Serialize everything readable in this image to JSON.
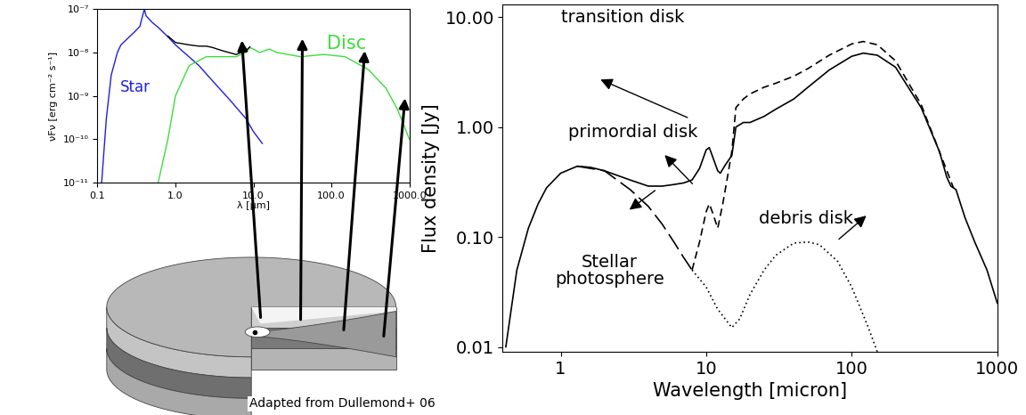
{
  "chart_data": [
    {
      "type": "line",
      "log": true,
      "xlabel": "λ [μm]",
      "ylabel": "νFν [erg cm⁻² s⁻¹]",
      "xlim": [
        0.1,
        1000.0
      ],
      "ylim": [
        1e-11,
        1e-07
      ],
      "xticks": [
        0.1,
        1.0,
        10.0,
        100.0,
        1000.0
      ],
      "yticks": [
        {
          "value": 1e-11,
          "label": "10⁻¹¹"
        },
        {
          "value": 1e-10,
          "label": "10⁻¹⁰"
        },
        {
          "value": 1e-09,
          "label": "10⁻⁹"
        },
        {
          "value": 1e-08,
          "label": "10⁻⁸"
        },
        {
          "value": 1e-07,
          "label": "10⁻⁷"
        }
      ],
      "series": [
        {
          "name": "Star",
          "color": "#1f1fe0",
          "line_style": "solid",
          "x": [
            0.11,
            0.115,
            0.13,
            0.15,
            0.18,
            0.2,
            0.25,
            0.3,
            0.35,
            0.37,
            0.4,
            0.42,
            0.5,
            0.6,
            0.8,
            1.0,
            2.0,
            3.0,
            5.0,
            8.0,
            10.0,
            13.0
          ],
          "values": [
            5e-12,
            1.5e-11,
            3e-10,
            3e-09,
            1e-08,
            1.5e-08,
            2.2e-08,
            3e-08,
            4e-08,
            6e-08,
            1e-07,
            7e-08,
            5e-08,
            3.8e-08,
            2.3e-08,
            1.5e-08,
            5e-09,
            2.2e-09,
            8e-10,
            3e-10,
            1.5e-10,
            8e-11
          ]
        },
        {
          "name": "Disc",
          "color": "#3fdc3f",
          "line_style": "solid",
          "x": [
            0.6,
            0.8,
            1.0,
            1.5,
            2.5,
            4.0,
            6.0,
            8.0,
            9.0,
            10.0,
            12.0,
            14.0,
            16.0,
            20.0,
            40.0,
            80.0,
            150.0,
            300.0,
            500.0,
            700.0,
            1000.0
          ],
          "values": [
            1e-11,
            1e-10,
            1e-09,
            5e-09,
            8e-09,
            8e-09,
            8e-09,
            1e-08,
            1.3e-08,
            1.2e-08,
            1e-08,
            1.1e-08,
            1.2e-08,
            1e-08,
            8e-09,
            9e-09,
            8e-09,
            4e-09,
            1.5e-09,
            5e-10,
            1e-10
          ]
        },
        {
          "color": "#000000",
          "line_style": "solid",
          "x": [
            0.8,
            1.0,
            1.5,
            2.0,
            2.5,
            3.0,
            4.0,
            6.0,
            8.0,
            9.0
          ],
          "values": [
            2.4e-08,
            1.7e-08,
            1.5e-08,
            1.4e-08,
            1.4e-08,
            1.3e-08,
            1.1e-08,
            9e-09,
            1.1e-08,
            1.35e-08
          ]
        }
      ]
    },
    {
      "type": "line",
      "log": true,
      "xlabel": "Wavelength [micron]",
      "ylabel": "Flux density [Jy]",
      "xlim": [
        0.4,
        1000
      ],
      "ylim": [
        0.009,
        13
      ],
      "xticks": [
        1,
        10,
        100,
        1000
      ],
      "yticks": [
        0.01,
        {
          "value": 0.1,
          "label": "0.10"
        },
        {
          "value": 1,
          "label": "1.00"
        },
        {
          "value": 10,
          "label": "10.00"
        }
      ],
      "series": [
        {
          "name": "primordial disk",
          "color": "#000000",
          "line_style": "solid",
          "x": [
            0.42,
            0.5,
            0.6,
            0.7,
            0.8,
            1.0,
            1.3,
            1.6,
            2.0,
            3.0,
            4.0,
            5.0,
            6.0,
            7.0,
            8.0,
            9.0,
            10.0,
            10.5,
            11.0,
            12.0,
            12.5,
            13.5,
            15.0,
            16.0,
            18.0,
            20.0,
            25.0,
            30.0,
            40.0,
            50.0,
            70.0,
            100.0,
            120.0,
            150.0,
            200.0,
            300.0,
            400.0,
            450.0,
            480.0,
            520.0,
            600.0,
            700.0,
            850.0,
            1000.0
          ],
          "values": [
            0.01,
            0.05,
            0.12,
            0.2,
            0.28,
            0.38,
            0.44,
            0.43,
            0.4,
            0.33,
            0.29,
            0.29,
            0.3,
            0.31,
            0.33,
            0.42,
            0.62,
            0.65,
            0.55,
            0.4,
            0.38,
            0.45,
            0.55,
            1.0,
            1.1,
            1.1,
            1.25,
            1.45,
            1.8,
            2.3,
            3.3,
            4.4,
            4.7,
            4.5,
            3.5,
            1.5,
            0.6,
            0.35,
            0.29,
            0.27,
            0.15,
            0.09,
            0.05,
            0.025
          ]
        },
        {
          "name": "Stellar\nphotosphere",
          "color": "#000000",
          "line_style": "long_dash",
          "x": [
            1.3,
            2.0,
            3.0,
            4.0,
            5.0,
            6.0,
            7.0,
            8.0
          ],
          "values": [
            0.44,
            0.4,
            0.27,
            0.19,
            0.13,
            0.09,
            0.065,
            0.05
          ]
        },
        {
          "name": "transition disk",
          "color": "#000000",
          "line_style": "dashed",
          "x": [
            8.0,
            9.0,
            10.0,
            10.5,
            11.0,
            12.0,
            13.0,
            14.0,
            15.0,
            16.0,
            18.0,
            20.0,
            25.0,
            30.0,
            40.0,
            50.0,
            70.0,
            100.0,
            120.0,
            150.0,
            200.0,
            300.0,
            400.0,
            500.0
          ],
          "values": [
            0.05,
            0.09,
            0.17,
            0.2,
            0.17,
            0.12,
            0.2,
            0.35,
            0.6,
            1.5,
            1.8,
            2.0,
            2.3,
            2.5,
            2.9,
            3.4,
            4.5,
            5.7,
            6.0,
            5.6,
            4.0,
            1.6,
            0.6,
            0.28
          ]
        },
        {
          "name": "debris disk",
          "color": "#000000",
          "line_style": "dotted",
          "x": [
            8.0,
            10.0,
            12.0,
            15.0,
            17.0,
            20.0,
            25.0,
            30.0,
            40.0,
            50.0,
            60.0,
            80.0,
            100.0,
            130.0,
            150.0
          ],
          "values": [
            0.05,
            0.035,
            0.022,
            0.015,
            0.018,
            0.03,
            0.05,
            0.068,
            0.088,
            0.09,
            0.085,
            0.06,
            0.035,
            0.015,
            0.009
          ]
        }
      ]
    }
  ],
  "caption": "Adapted from Dullemond+ 06"
}
